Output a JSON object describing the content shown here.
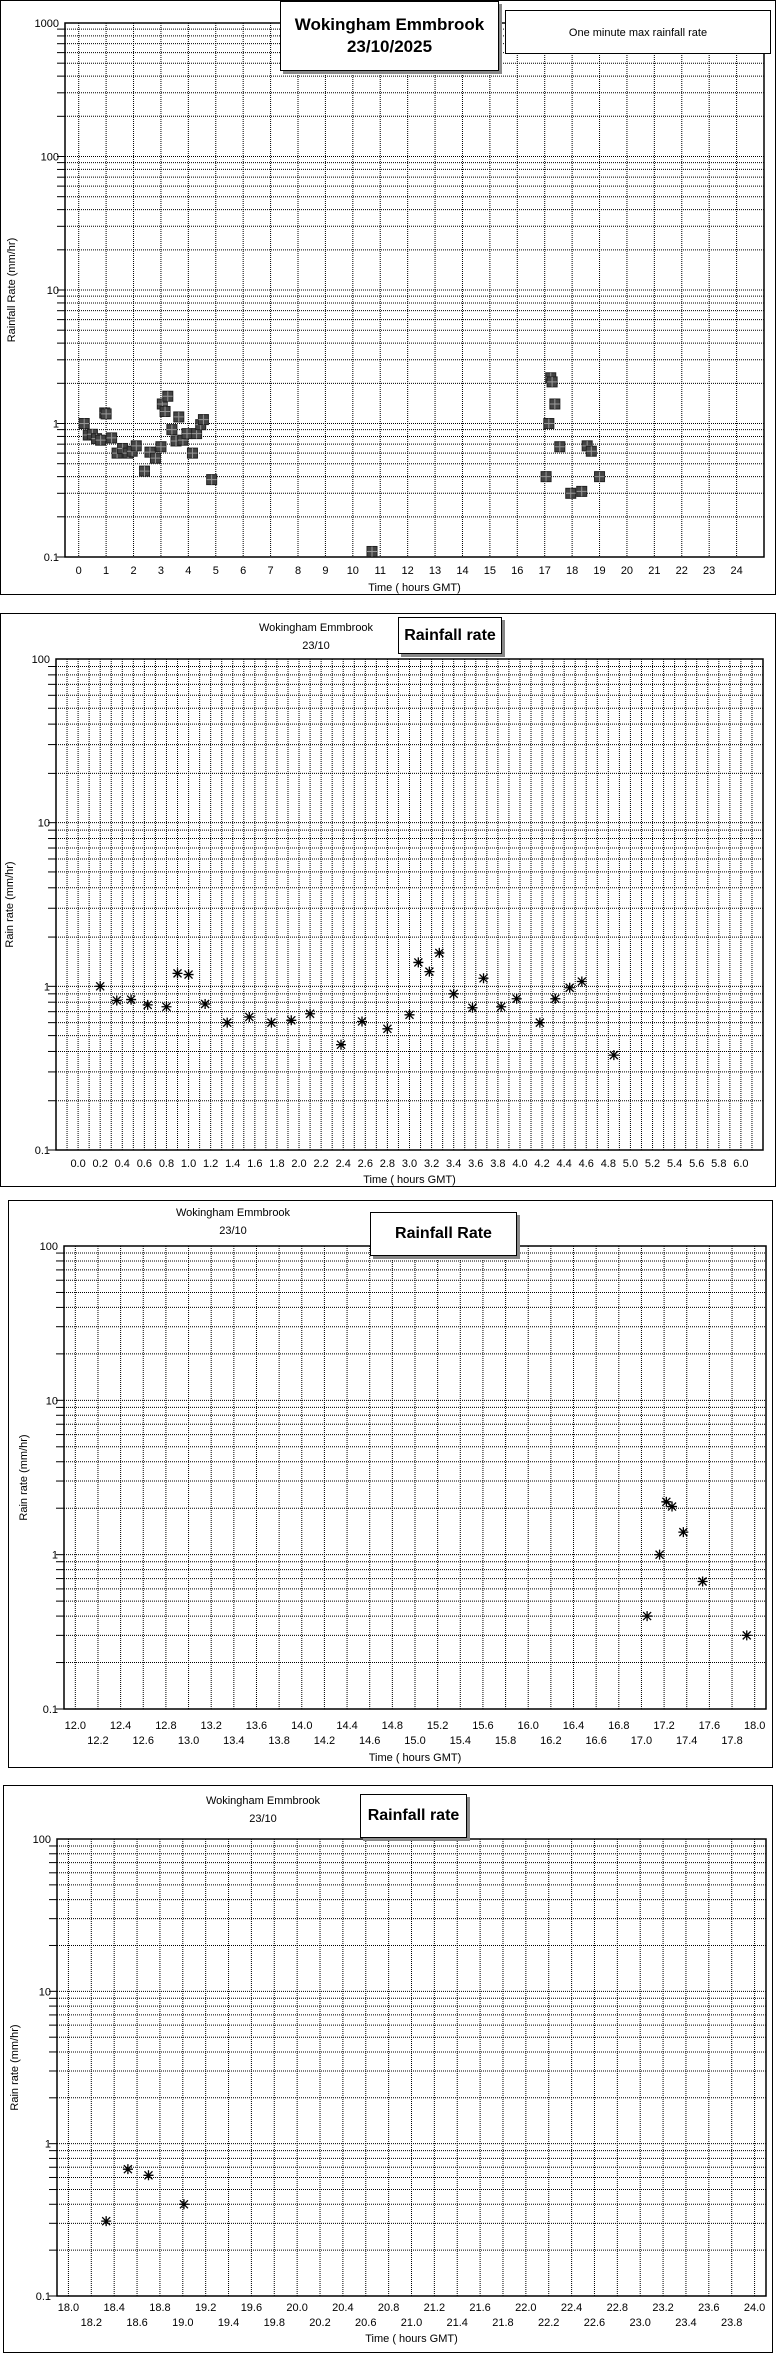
{
  "chart_data": [
    {
      "type": "scatter",
      "title": "Wokingham Emmbrook",
      "date": "23/10/2025",
      "legend": "One minute max rainfall rate",
      "xlabel": "Time ( hours GMT)",
      "ylabel": "Rainfall Rate (mm/hr)",
      "xlim": [
        -0.5,
        25
      ],
      "ylim": [
        0.1,
        1000
      ],
      "yscale": "log",
      "grid": true,
      "marker": "square",
      "xticks": [
        "0",
        "1",
        "2",
        "3",
        "4",
        "5",
        "6",
        "7",
        "8",
        "9",
        "10",
        "11",
        "12",
        "13",
        "14",
        "15",
        "16",
        "17",
        "18",
        "19",
        "20",
        "21",
        "22",
        "23",
        "24"
      ],
      "yticks": [
        "0.1",
        "1",
        "10",
        "100",
        "1000"
      ],
      "x": [
        0.2,
        0.35,
        0.5,
        0.65,
        0.8,
        0.95,
        1.0,
        1.2,
        1.4,
        1.6,
        1.8,
        1.95,
        2.1,
        2.4,
        2.6,
        2.8,
        3.0,
        3.05,
        3.15,
        3.25,
        3.4,
        3.55,
        3.65,
        3.8,
        3.95,
        4.15,
        4.3,
        4.45,
        4.55,
        4.85,
        10.7,
        17.05,
        17.15,
        17.22,
        17.27,
        17.37,
        17.55,
        17.95,
        18.35,
        18.55,
        18.7,
        19.0
      ],
      "y": [
        1.0,
        0.82,
        0.83,
        0.77,
        0.75,
        1.2,
        1.18,
        0.78,
        0.6,
        0.65,
        0.6,
        0.62,
        0.68,
        0.44,
        0.61,
        0.55,
        0.67,
        1.4,
        1.23,
        1.6,
        0.9,
        0.74,
        1.12,
        0.75,
        0.84,
        0.6,
        0.84,
        0.98,
        1.07,
        0.38,
        0.11,
        0.4,
        1.0,
        2.2,
        2.05,
        1.4,
        0.67,
        0.3,
        0.31,
        0.68,
        0.62,
        0.4
      ]
    },
    {
      "type": "scatter",
      "title": "Rainfall rate",
      "subtitle": "Wokingham Emmbrook",
      "date": "23/10",
      "xlabel": "Time ( hours GMT)",
      "ylabel": "Rain rate (mm/hr)",
      "xlim": [
        -0.2,
        6.2
      ],
      "ylim": [
        0.1,
        100
      ],
      "yscale": "log",
      "grid": true,
      "marker": "asterisk",
      "xticks": [
        "0.0",
        "0.2",
        "0.4",
        "0.6",
        "0.8",
        "1.0",
        "1.2",
        "1.4",
        "1.6",
        "1.8",
        "2.0",
        "2.2",
        "2.4",
        "2.6",
        "2.8",
        "3.0",
        "3.2",
        "3.4",
        "3.6",
        "3.8",
        "4.0",
        "4.2",
        "4.4",
        "4.6",
        "4.8",
        "5.0",
        "5.2",
        "5.4",
        "5.6",
        "5.8",
        "6.0"
      ],
      "yticks": [
        "0.1",
        "1",
        "10",
        "100"
      ],
      "x": [
        0.2,
        0.35,
        0.48,
        0.63,
        0.8,
        0.9,
        1.0,
        1.15,
        1.35,
        1.55,
        1.75,
        1.93,
        2.1,
        2.38,
        2.57,
        2.8,
        3.0,
        3.08,
        3.18,
        3.27,
        3.4,
        3.57,
        3.67,
        3.83,
        3.97,
        4.18,
        4.32,
        4.45,
        4.56,
        4.85
      ],
      "y": [
        1.0,
        0.82,
        0.83,
        0.77,
        0.75,
        1.2,
        1.18,
        0.78,
        0.6,
        0.65,
        0.6,
        0.62,
        0.68,
        0.44,
        0.61,
        0.55,
        0.67,
        1.4,
        1.23,
        1.6,
        0.9,
        0.74,
        1.12,
        0.75,
        0.84,
        0.6,
        0.84,
        0.98,
        1.07,
        0.38
      ]
    },
    {
      "type": "scatter",
      "title": "Rainfall Rate",
      "subtitle": "Wokingham Emmbrook",
      "date": "23/10",
      "xlabel": "Time ( hours GMT)",
      "ylabel": "Rain rate (mm/hr)",
      "xlim": [
        11.9,
        18.1
      ],
      "ylim": [
        0.1,
        100
      ],
      "yscale": "log",
      "grid": true,
      "marker": "asterisk",
      "xticks": [
        "12.0",
        "12.2",
        "12.4",
        "12.6",
        "12.8",
        "13.0",
        "13.2",
        "13.4",
        "13.6",
        "13.8",
        "14.0",
        "14.2",
        "14.4",
        "14.6",
        "14.8",
        "15.0",
        "15.2",
        "15.4",
        "15.6",
        "15.8",
        "16.0",
        "16.2",
        "16.4",
        "16.6",
        "16.8",
        "17.0",
        "17.2",
        "17.4",
        "17.6",
        "17.8",
        "18.0"
      ],
      "yticks": [
        "0.1",
        "1",
        "10",
        "100"
      ],
      "x": [
        17.05,
        17.16,
        17.22,
        17.27,
        17.37,
        17.54,
        17.93
      ],
      "y": [
        0.4,
        1.0,
        2.2,
        2.05,
        1.4,
        0.67,
        0.3
      ],
      "_": null
    },
    {
      "type": "scatter",
      "title": "Rainfall rate",
      "subtitle": "Wokingham Emmbrook",
      "date": "23/10",
      "xlabel": "Time ( hours GMT)",
      "ylabel": "Rain rate (mm/hr)",
      "xlim": [
        17.9,
        24.1
      ],
      "ylim": [
        0.1,
        100
      ],
      "yscale": "log",
      "grid": true,
      "marker": "asterisk",
      "xticks": [
        "18.0",
        "18.2",
        "18.4",
        "18.6",
        "18.8",
        "19.0",
        "19.2",
        "19.4",
        "19.6",
        "19.8",
        "20.0",
        "20.2",
        "20.4",
        "20.6",
        "20.8",
        "21.0",
        "21.2",
        "21.4",
        "21.6",
        "21.8",
        "22.0",
        "22.2",
        "22.4",
        "22.6",
        "22.8",
        "23.0",
        "23.2",
        "23.4",
        "23.6",
        "23.8",
        "24.0"
      ],
      "yticks": [
        "0.1",
        "1",
        "10",
        "100"
      ],
      "x": [
        18.33,
        18.52,
        18.7,
        19.01
      ],
      "y": [
        0.31,
        0.68,
        0.62,
        0.4
      ]
    }
  ]
}
